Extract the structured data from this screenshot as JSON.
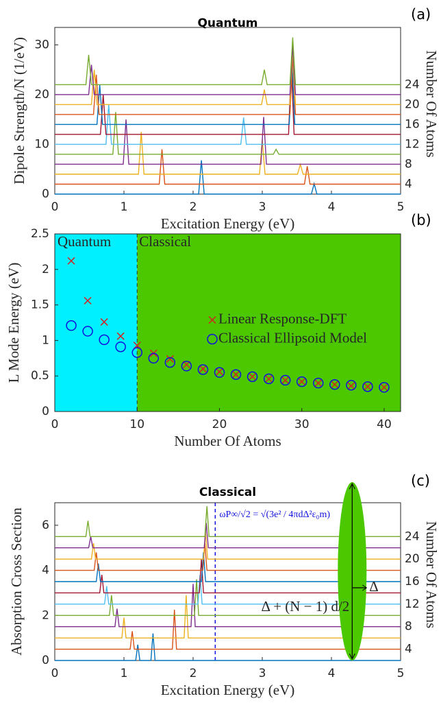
{
  "chart_data": [
    {
      "type": "line",
      "title": "Quantum",
      "panel_label": "(a)",
      "xlabel": "Excitation Energy (eV)",
      "ylabel": "Dipole Strength/N (1/eV)",
      "y2label": "Number Of Atoms",
      "xlim": [
        0,
        5
      ],
      "xticks": [
        0,
        1,
        2,
        3,
        4,
        5
      ],
      "ylim": [
        0,
        33.5
      ],
      "yticks": [
        0,
        10,
        20,
        30
      ],
      "y2lim": [
        2,
        35.5
      ],
      "y2ticks": [
        4,
        8,
        12,
        16,
        20,
        24
      ],
      "series": [
        {
          "color": "#0072BD",
          "x": [
            0,
            2.08,
            2.12,
            2.16,
            3.71,
            3.75,
            3.79,
            5
          ],
          "values": [
            0,
            0,
            6.8,
            0,
            0,
            2.1,
            0,
            0
          ]
        },
        {
          "color": "#D95319",
          "x": [
            0,
            1.51,
            1.55,
            1.59,
            3.61,
            3.65,
            3.69,
            5
          ],
          "values": [
            2,
            2,
            9,
            2,
            2,
            5.6,
            2,
            2
          ]
        },
        {
          "color": "#EDB120",
          "x": [
            0,
            1.21,
            1.25,
            1.29,
            2.96,
            3.0,
            3.04,
            3.51,
            3.55,
            3.59,
            5
          ],
          "values": [
            4,
            4,
            12.5,
            4,
            4,
            11,
            4,
            4,
            6,
            4,
            4
          ]
        },
        {
          "color": "#7E2F8E",
          "x": [
            0,
            0.99,
            1.03,
            1.07,
            2.98,
            3.02,
            3.06,
            5
          ],
          "values": [
            6,
            6,
            15,
            6,
            6,
            15.5,
            6,
            6
          ]
        },
        {
          "color": "#77AC30",
          "x": [
            0,
            0.84,
            0.88,
            0.92,
            3.16,
            3.2,
            3.24,
            5
          ],
          "values": [
            8,
            8,
            16.5,
            8,
            8,
            9,
            8,
            8
          ]
        },
        {
          "color": "#4DBEEE",
          "x": [
            0,
            0.74,
            0.78,
            0.82,
            2.69,
            2.73,
            2.77,
            5
          ],
          "values": [
            10,
            10,
            18,
            10,
            10,
            15.4,
            10,
            10
          ]
        },
        {
          "color": "#A2142F",
          "x": [
            0,
            0.66,
            0.7,
            0.74,
            3.38,
            3.42,
            3.46,
            5
          ],
          "values": [
            12,
            12,
            20,
            12,
            12,
            26,
            12,
            12
          ]
        },
        {
          "color": "#0072BD",
          "x": [
            0,
            0.61,
            0.65,
            0.69,
            3.39,
            3.43,
            3.47,
            5
          ],
          "values": [
            14,
            14,
            22,
            14,
            14,
            26.5,
            14,
            14
          ]
        },
        {
          "color": "#D95319",
          "x": [
            0,
            0.56,
            0.6,
            0.64,
            3.4,
            3.44,
            3.48,
            5
          ],
          "values": [
            16,
            16,
            24,
            16,
            16,
            28,
            16,
            16
          ]
        },
        {
          "color": "#EDB120",
          "x": [
            0,
            0.53,
            0.57,
            0.61,
            2.99,
            3.03,
            3.07,
            3.4,
            3.44,
            3.48,
            5
          ],
          "values": [
            18,
            18,
            25,
            18,
            18,
            21,
            18,
            18,
            29,
            18,
            18
          ]
        },
        {
          "color": "#7E2F8E",
          "x": [
            0,
            0.49,
            0.53,
            0.57,
            3.4,
            3.44,
            3.48,
            5
          ],
          "values": [
            20,
            20,
            26,
            20,
            20,
            30,
            20,
            20
          ]
        },
        {
          "color": "#77AC30",
          "x": [
            0,
            0.45,
            0.49,
            0.53,
            2.99,
            3.03,
            3.07,
            3.4,
            3.44,
            3.48,
            5
          ],
          "values": [
            22,
            22,
            28,
            22,
            22,
            25,
            22,
            22,
            31.5,
            22,
            22
          ]
        }
      ]
    },
    {
      "type": "scatter",
      "panel_label": "(b)",
      "xlabel": "Number Of Atoms",
      "ylabel": "L Mode Energy (eV)",
      "xlim": [
        0,
        42
      ],
      "xticks": [
        0,
        10,
        20,
        30,
        40
      ],
      "ylim": [
        0,
        2.5
      ],
      "yticks": [
        0,
        0.5,
        1,
        1.5,
        2,
        2.5
      ],
      "legend": "east",
      "regions": [
        {
          "name": "Quantum",
          "range": [
            0,
            10
          ],
          "color": "#00F0FF"
        },
        {
          "name": "Classical",
          "range": [
            10,
            42
          ],
          "color": "#4CC800"
        }
      ],
      "x": [
        2,
        4,
        6,
        8,
        10,
        12,
        14,
        16,
        18,
        20,
        22,
        24,
        26,
        28,
        30,
        32,
        34,
        36,
        38,
        40
      ],
      "series": [
        {
          "name": "Linear Response-DFT",
          "color": "#D62020",
          "marker": "x",
          "values": [
            2.12,
            1.56,
            1.26,
            1.06,
            0.93,
            0.82,
            0.74,
            0.66,
            0.6,
            0.56,
            0.52,
            0.49,
            0.46,
            0.44,
            0.42,
            0.4,
            0.38,
            0.36,
            0.35,
            0.34
          ]
        },
        {
          "name": "Classical Ellipsoid Model",
          "color": "#1010E0",
          "marker": "o",
          "values": [
            1.21,
            1.13,
            1.01,
            0.91,
            0.83,
            0.75,
            0.69,
            0.64,
            0.59,
            0.55,
            0.52,
            0.49,
            0.46,
            0.44,
            0.42,
            0.4,
            0.38,
            0.37,
            0.35,
            0.34
          ]
        }
      ]
    },
    {
      "type": "line",
      "title": "Classical",
      "panel_label": "(c)",
      "xlabel": "Excitation Energy (eV)",
      "ylabel": "Absorption Cross Section",
      "y2label": "Number Of Atoms",
      "xlim": [
        0,
        5
      ],
      "xticks": [
        0,
        1,
        2,
        3,
        4,
        5
      ],
      "ylim": [
        0,
        7
      ],
      "yticks": [
        0,
        2,
        4,
        6
      ],
      "y2lim": [
        2,
        30
      ],
      "y2ticks": [
        4,
        8,
        12,
        16,
        20,
        24
      ],
      "vline": 2.32,
      "annotations": [
        "ωP∞/√2 = √(3e² / 4πdΔ²ε₀m)",
        "Δ",
        "Δ + (N − 1) d/2"
      ],
      "series": [
        {
          "color": "#0072BD",
          "x": [
            0,
            1.17,
            1.2,
            1.23,
            1.39,
            1.42,
            1.45,
            5
          ],
          "values": [
            0,
            0,
            0.7,
            0,
            0,
            1.2,
            0,
            0
          ]
        },
        {
          "color": "#D95319",
          "x": [
            0,
            1.09,
            1.12,
            1.15,
            1.7,
            1.73,
            1.76,
            5
          ],
          "values": [
            0.5,
            0.5,
            1.3,
            0.5,
            0.5,
            2.25,
            0.5,
            0.5
          ]
        },
        {
          "color": "#EDB120",
          "x": [
            0,
            0.97,
            1.0,
            1.03,
            1.87,
            1.9,
            1.93,
            5
          ],
          "values": [
            1,
            1,
            1.9,
            1,
            1,
            2.9,
            1,
            1
          ]
        },
        {
          "color": "#7E2F8E",
          "x": [
            0,
            0.87,
            0.9,
            0.93,
            1.97,
            2.0,
            2.03,
            5
          ],
          "values": [
            1.5,
            1.5,
            2.3,
            1.5,
            1.5,
            3.4,
            1.5,
            1.5
          ]
        },
        {
          "color": "#77AC30",
          "x": [
            0,
            0.79,
            0.82,
            0.85,
            2.02,
            2.05,
            2.08,
            5
          ],
          "values": [
            2,
            2,
            2.9,
            2,
            2,
            3.6,
            2,
            2
          ]
        },
        {
          "color": "#4DBEEE",
          "x": [
            0,
            0.72,
            0.75,
            0.78,
            2.07,
            2.1,
            2.13,
            5
          ],
          "values": [
            2.5,
            2.5,
            3.3,
            2.5,
            2.5,
            3.8,
            2.5,
            2.5
          ]
        },
        {
          "color": "#A2142F",
          "x": [
            0,
            0.65,
            0.68,
            0.71,
            2.09,
            2.12,
            2.15,
            5
          ],
          "values": [
            3,
            3,
            3.8,
            3,
            3,
            4.5,
            3,
            3
          ]
        },
        {
          "color": "#0072BD",
          "x": [
            0,
            0.6,
            0.63,
            0.66,
            2.12,
            2.15,
            2.18,
            5
          ],
          "values": [
            3.5,
            3.5,
            4.3,
            3.5,
            3.5,
            4.8,
            3.5,
            3.5
          ]
        },
        {
          "color": "#D95319",
          "x": [
            0,
            0.57,
            0.6,
            0.63,
            2.14,
            2.17,
            2.2,
            5
          ],
          "values": [
            4,
            4,
            4.8,
            4,
            4,
            5.2,
            4,
            4
          ]
        },
        {
          "color": "#EDB120",
          "x": [
            0,
            0.53,
            0.56,
            0.59,
            2.15,
            2.18,
            2.21,
            5
          ],
          "values": [
            4.5,
            4.5,
            5.2,
            4.5,
            4.5,
            5.7,
            4.5,
            4.5
          ]
        },
        {
          "color": "#7E2F8E",
          "x": [
            0,
            0.49,
            0.52,
            0.55,
            2.16,
            2.19,
            2.22,
            5
          ],
          "values": [
            5,
            5,
            5.5,
            5,
            5,
            6.1,
            5,
            5
          ]
        },
        {
          "color": "#77AC30",
          "x": [
            0,
            0.45,
            0.48,
            0.51,
            2.17,
            2.2,
            2.23,
            5
          ],
          "values": [
            5.5,
            5.5,
            6.2,
            5.5,
            5.5,
            6.85,
            5.5,
            5.5
          ]
        }
      ]
    }
  ]
}
